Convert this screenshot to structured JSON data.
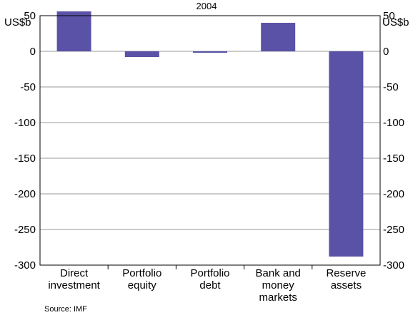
{
  "chart_data": {
    "type": "bar",
    "title": "",
    "subtitle": "2004",
    "unit_left": "US$b",
    "unit_right": "US$b",
    "categories": [
      [
        "Direct",
        "investment"
      ],
      [
        "Portfolio",
        "equity"
      ],
      [
        "Portfolio",
        "debt"
      ],
      [
        "Bank and",
        "money",
        "markets"
      ],
      [
        "Reserve",
        "assets"
      ]
    ],
    "values": [
      56,
      -8,
      -2,
      40,
      -288
    ],
    "ylim": [
      -300,
      50
    ],
    "yticks": [
      "50",
      "0",
      "-50",
      "-100",
      "-150",
      "-200",
      "-250",
      "-300"
    ],
    "ytick_values": [
      50,
      0,
      -50,
      -100,
      -150,
      -200,
      -250,
      -300
    ],
    "grid": true,
    "bar_color": "#5a52a6",
    "source": "Source: IMF"
  }
}
